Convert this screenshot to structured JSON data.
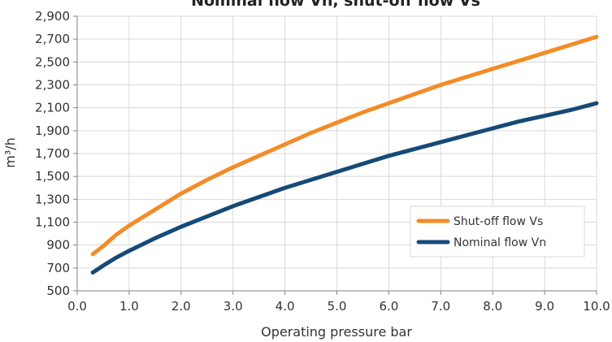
{
  "chart_data": {
    "type": "line",
    "title": "Nominal flow  Vn, shut-off flow  Vs",
    "xlabel": "Operating pressure bar",
    "ylabel": "m³/h",
    "xlim": [
      0,
      10
    ],
    "ylim": [
      500,
      2900
    ],
    "x_ticks": [
      0,
      1,
      2,
      3,
      4,
      5,
      6,
      7,
      8,
      9,
      10
    ],
    "x_tick_labels": [
      "0.0",
      "1.0",
      "2.0",
      "3.0",
      "4.0",
      "5.0",
      "6.0",
      "7.0",
      "8.0",
      "9.0",
      "10.0"
    ],
    "y_ticks": [
      500,
      700,
      900,
      1100,
      1300,
      1500,
      1700,
      1900,
      2100,
      2300,
      2500,
      2700,
      2900
    ],
    "y_tick_labels": [
      "500",
      "700",
      "900",
      "1,100",
      "1,300",
      "1,500",
      "1,700",
      "1,900",
      "2,100",
      "2,300",
      "2,500",
      "2,700",
      "2,900"
    ],
    "grid": true,
    "legend_position": "right",
    "series": [
      {
        "name": "Shut-off flow  Vs",
        "color": "#F28C28",
        "x": [
          0.3,
          0.5,
          0.75,
          1,
          1.5,
          2,
          2.5,
          3,
          3.5,
          4,
          4.5,
          5,
          5.5,
          6,
          6.5,
          7,
          7.5,
          8,
          8.5,
          9,
          9.5,
          10
        ],
        "y": [
          820,
          890,
          990,
          1070,
          1210,
          1350,
          1470,
          1580,
          1680,
          1780,
          1880,
          1970,
          2060,
          2140,
          2220,
          2300,
          2370,
          2440,
          2510,
          2580,
          2650,
          2720
        ]
      },
      {
        "name": "Nominal flow  Vn",
        "color": "#154A77",
        "x": [
          0.3,
          0.5,
          0.75,
          1,
          1.5,
          2,
          2.5,
          3,
          3.5,
          4,
          4.5,
          5,
          5.5,
          6,
          6.5,
          7,
          7.5,
          8,
          8.5,
          9,
          9.5,
          10
        ],
        "y": [
          660,
          720,
          790,
          850,
          960,
          1060,
          1150,
          1240,
          1320,
          1400,
          1470,
          1540,
          1610,
          1680,
          1740,
          1800,
          1860,
          1920,
          1980,
          2030,
          2080,
          2140
        ]
      }
    ]
  }
}
